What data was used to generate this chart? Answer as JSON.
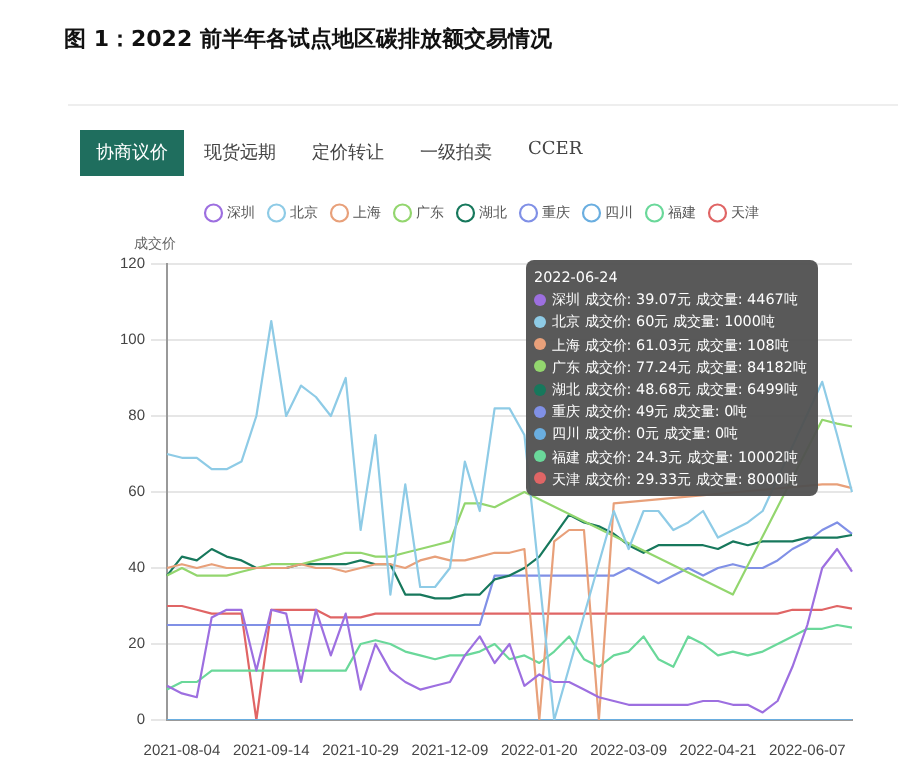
{
  "chart_data": {
    "type": "line",
    "title": "图 1：2022 前半年各试点地区碳排放额交易情况",
    "ylabel": "成交价",
    "categories": [
      null,
      "2021-08-04",
      null,
      null,
      null,
      null,
      null,
      "2021-09-14",
      null,
      null,
      null,
      null,
      null,
      "2021-10-29",
      null,
      null,
      null,
      null,
      null,
      "2021-12-09",
      null,
      null,
      null,
      null,
      null,
      "2022-01-20",
      null,
      null,
      null,
      null,
      null,
      "2022-03-09",
      null,
      null,
      null,
      null,
      null,
      "2022-04-21",
      null,
      null,
      null,
      null,
      null,
      "2022-06-07",
      null,
      null,
      null
    ],
    "series": [
      {
        "name": "深圳",
        "color": "#9d6fe0",
        "values": [
          9,
          7,
          6,
          27,
          29,
          29,
          13,
          29,
          28,
          10,
          29,
          17,
          28,
          8,
          20,
          13,
          10,
          8,
          9,
          10,
          17,
          22,
          15,
          20,
          9,
          12,
          10,
          10,
          8,
          6,
          5,
          4,
          4,
          4,
          4,
          4,
          5,
          5,
          4,
          4,
          2,
          5,
          14,
          25,
          40,
          45,
          39.07
        ]
      },
      {
        "name": "北京",
        "color": "#8ecbe6",
        "values": [
          70,
          69,
          69,
          66,
          66,
          68,
          80,
          105,
          80,
          88,
          85,
          80,
          90,
          50,
          75,
          33,
          62,
          35,
          35,
          40,
          68,
          55,
          82,
          82,
          75,
          null,
          0,
          null,
          null,
          null,
          55,
          45,
          55,
          55,
          50,
          52,
          55,
          48,
          50,
          52,
          55,
          null,
          null,
          null,
          89,
          75,
          60
        ]
      },
      {
        "name": "上海",
        "color": "#e8a07a",
        "values": [
          40,
          41,
          40,
          41,
          40,
          40,
          40,
          40,
          40,
          41,
          40,
          40,
          39,
          40,
          41,
          41,
          40,
          42,
          43,
          42,
          42,
          43,
          44,
          44,
          45,
          0,
          47,
          50,
          50,
          0,
          57,
          null,
          null,
          null,
          null,
          null,
          null,
          null,
          null,
          null,
          null,
          null,
          null,
          null,
          62,
          62,
          61.03
        ]
      },
      {
        "name": "广东",
        "color": "#93d66e",
        "values": [
          38,
          40,
          38,
          38,
          38,
          39,
          40,
          41,
          41,
          41,
          42,
          43,
          44,
          44,
          43,
          43,
          44,
          45,
          46,
          47,
          57,
          57,
          56,
          58,
          60,
          null,
          null,
          null,
          null,
          null,
          null,
          null,
          null,
          null,
          null,
          null,
          null,
          null,
          33,
          null,
          null,
          null,
          null,
          null,
          79,
          78,
          77.24
        ]
      },
      {
        "name": "湖北",
        "color": "#17785c",
        "values": [
          38,
          43,
          42,
          45,
          43,
          42,
          40,
          40,
          40,
          41,
          41,
          41,
          41,
          42,
          41,
          41,
          33,
          33,
          32,
          32,
          33,
          33,
          37,
          38,
          40,
          43,
          null,
          54,
          52,
          51,
          49,
          46,
          44,
          46,
          46,
          46,
          46,
          45,
          47,
          46,
          47,
          47,
          47,
          48,
          48,
          48,
          48.68
        ]
      },
      {
        "name": "重庆",
        "color": "#8090e6",
        "values": [
          25,
          25,
          25,
          25,
          25,
          25,
          25,
          25,
          25,
          25,
          25,
          25,
          25,
          25,
          25,
          25,
          25,
          25,
          25,
          25,
          25,
          25,
          38,
          38,
          38,
          38,
          38,
          38,
          38,
          38,
          38,
          40,
          38,
          36,
          38,
          40,
          38,
          40,
          41,
          40,
          40,
          42,
          45,
          47,
          50,
          52,
          49
        ]
      },
      {
        "name": "四川",
        "color": "#6aaee0",
        "values": [
          0,
          0,
          0,
          0,
          0,
          0,
          0,
          0,
          0,
          0,
          0,
          0,
          0,
          0,
          0,
          0,
          0,
          0,
          0,
          0,
          0,
          0,
          0,
          0,
          0,
          0,
          0,
          0,
          0,
          0,
          0,
          0,
          0,
          0,
          0,
          0,
          0,
          0,
          0,
          0,
          0,
          0,
          0,
          0,
          0,
          0,
          0
        ]
      },
      {
        "name": "福建",
        "color": "#6ad89a",
        "values": [
          8,
          10,
          10,
          13,
          13,
          13,
          13,
          13,
          13,
          13,
          13,
          13,
          13,
          20,
          21,
          20,
          18,
          17,
          16,
          17,
          17,
          18,
          20,
          16,
          17,
          15,
          18,
          22,
          16,
          14,
          17,
          18,
          22,
          16,
          14,
          22,
          20,
          17,
          18,
          17,
          18,
          20,
          22,
          24,
          24,
          25,
          24.3
        ]
      },
      {
        "name": "天津",
        "color": "#e06565",
        "values": [
          30,
          30,
          29,
          28,
          28,
          28,
          0,
          29,
          29,
          29,
          29,
          27,
          27,
          27,
          28,
          28,
          28,
          28,
          28,
          28,
          28,
          28,
          28,
          28,
          28,
          28,
          28,
          28,
          28,
          28,
          28,
          28,
          28,
          28,
          28,
          28,
          28,
          28,
          28,
          28,
          28,
          28,
          29,
          29,
          29,
          30,
          29.33
        ]
      }
    ],
    "ylim": [
      0,
      120
    ],
    "yticks": [
      0,
      20,
      40,
      60,
      80,
      100,
      120
    ],
    "grid": "y",
    "legend": "top",
    "marker": "none",
    "line_style": "solid",
    "annotations": [
      "协商议价",
      "现货远期",
      "定价转让",
      "一级拍卖",
      "CCER",
      "2022-06-24",
      "深圳 成交价: 39.07元 成交量: 4467吨",
      "北京 成交价: 60元 成交量: 1000吨",
      "上海 成交价: 61.03元 成交量: 108吨",
      "广东 成交价: 77.24元 成交量: 84182吨",
      "湖北 成交价: 48.68元 成交量: 6499吨",
      "重庆 成交价: 49元 成交量: 0吨",
      "四川 成交价: 0元 成交量: 0吨",
      "福建 成交价: 24.3元 成交量: 10002吨",
      "天津 成交价: 29.33元 成交量: 8000吨"
    ]
  }
}
